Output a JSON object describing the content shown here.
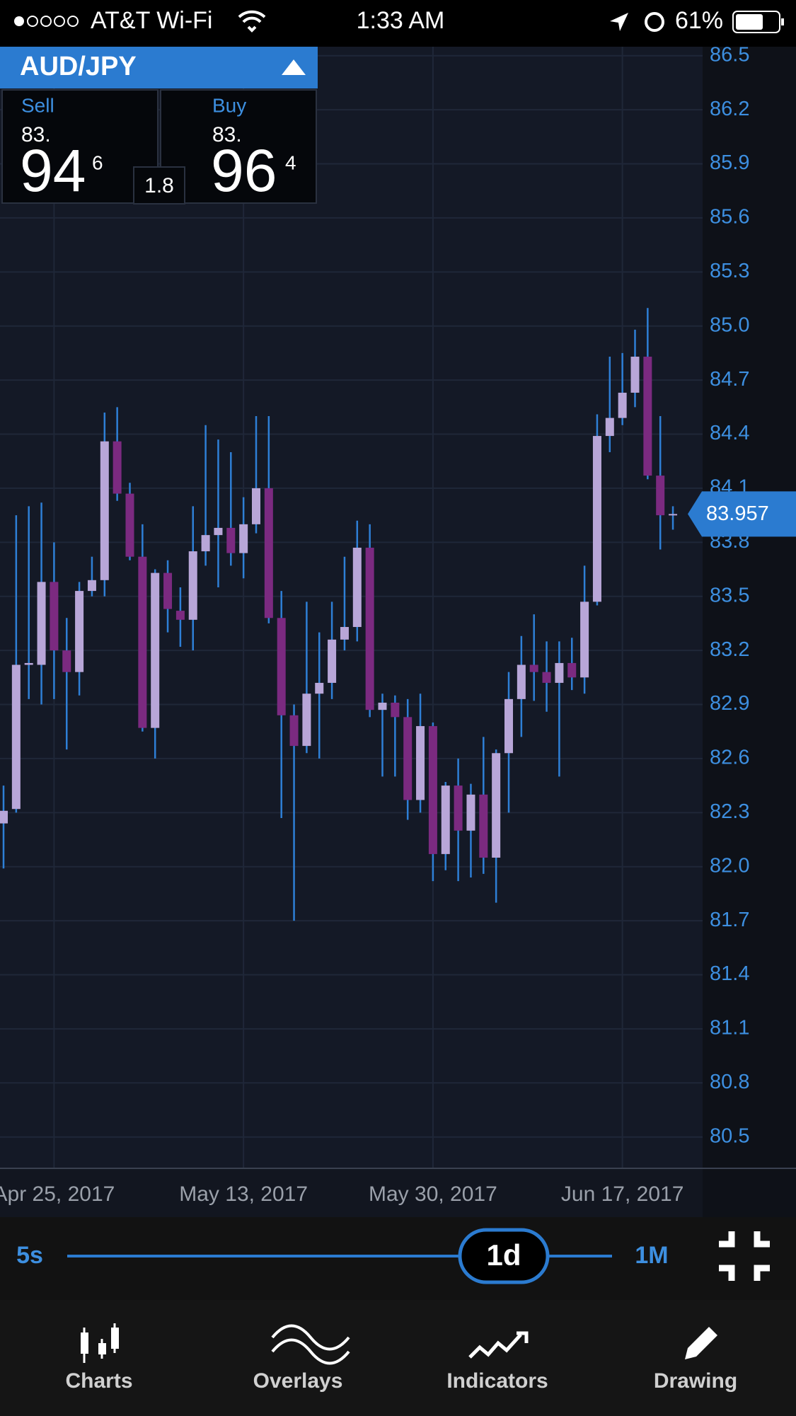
{
  "status_bar": {
    "carrier": "AT&T Wi-Fi",
    "time": "1:33 AM",
    "battery": "61%"
  },
  "ticket": {
    "pair": "AUD/JPY",
    "sell": {
      "label": "Sell",
      "big_figure": "83.",
      "pips": "94",
      "fraction": "6"
    },
    "spread": "1.8",
    "buy": {
      "label": "Buy",
      "big_figure": "83.",
      "pips": "96",
      "fraction": "4"
    }
  },
  "chart_data": {
    "type": "candlestick",
    "categories": [
      null,
      null,
      null,
      null,
      null,
      null,
      null,
      null,
      null,
      null,
      null,
      null,
      null,
      null,
      null,
      null,
      null,
      null,
      null,
      null,
      null,
      null,
      null,
      null,
      null,
      null,
      null,
      null,
      null,
      null,
      null,
      null,
      null,
      null,
      null,
      null,
      null,
      null,
      null,
      null,
      null,
      null,
      null,
      null,
      null,
      null,
      null,
      null,
      null,
      null,
      null,
      null,
      null,
      null
    ],
    "open": [
      82.24,
      82.32,
      83.12,
      83.12,
      83.58,
      83.2,
      83.08,
      83.53,
      83.59,
      84.36,
      84.07,
      83.72,
      82.77,
      83.63,
      83.42,
      83.37,
      83.75,
      83.84,
      83.88,
      83.74,
      83.9,
      84.1,
      83.38,
      82.84,
      82.67,
      82.96,
      83.02,
      83.26,
      83.33,
      83.77,
      82.87,
      82.91,
      82.83,
      82.37,
      82.78,
      82.07,
      82.45,
      82.2,
      82.4,
      82.05,
      82.63,
      82.93,
      83.12,
      83.08,
      83.02,
      83.13,
      83.05,
      83.47,
      84.39,
      84.49,
      84.63,
      84.83,
      84.17,
      83.95
    ],
    "high": [
      82.45,
      83.95,
      84.0,
      84.02,
      83.8,
      83.38,
      83.58,
      83.72,
      84.52,
      84.55,
      84.13,
      83.9,
      83.65,
      83.7,
      83.55,
      84.0,
      84.45,
      84.37,
      84.3,
      84.05,
      84.5,
      84.5,
      83.53,
      82.9,
      83.47,
      83.3,
      83.47,
      83.72,
      83.92,
      83.9,
      82.96,
      82.95,
      82.93,
      82.96,
      82.8,
      82.47,
      82.6,
      82.46,
      82.72,
      82.65,
      83.08,
      83.28,
      83.4,
      83.25,
      83.25,
      83.27,
      83.67,
      84.51,
      84.83,
      84.85,
      84.98,
      85.1,
      84.5,
      84.0
    ],
    "low": [
      81.99,
      82.3,
      82.93,
      82.9,
      82.93,
      82.65,
      82.95,
      83.5,
      83.5,
      84.03,
      83.7,
      82.75,
      82.6,
      83.3,
      83.22,
      83.2,
      83.67,
      83.55,
      83.67,
      83.6,
      83.85,
      83.35,
      82.27,
      81.7,
      82.63,
      82.6,
      82.93,
      83.2,
      83.25,
      82.83,
      82.5,
      82.5,
      82.26,
      82.3,
      81.92,
      81.98,
      81.92,
      81.94,
      81.96,
      81.8,
      82.3,
      82.72,
      82.92,
      82.86,
      82.5,
      82.98,
      82.96,
      83.45,
      84.3,
      84.45,
      84.55,
      84.15,
      83.76,
      83.87
    ],
    "close": [
      82.31,
      83.12,
      83.13,
      83.58,
      83.2,
      83.08,
      83.53,
      83.59,
      84.36,
      84.07,
      83.72,
      82.77,
      83.63,
      83.43,
      83.37,
      83.75,
      83.84,
      83.88,
      83.74,
      83.9,
      84.1,
      83.38,
      82.84,
      82.67,
      82.96,
      83.02,
      83.26,
      83.33,
      83.77,
      82.87,
      82.91,
      82.83,
      82.37,
      82.78,
      82.07,
      82.45,
      82.2,
      82.4,
      82.05,
      82.63,
      82.93,
      83.12,
      83.08,
      83.02,
      83.13,
      83.05,
      83.47,
      84.39,
      84.49,
      84.63,
      84.83,
      84.17,
      83.95,
      83.957
    ],
    "up_color": "#b8a6d8",
    "down_color": "#7b2a80",
    "wick_color": "#2e7fd6",
    "last_price": 83.957,
    "ylim": [
      80.33,
      86.55
    ],
    "yticks": [
      80.5,
      80.8,
      81.1,
      81.4,
      81.7,
      {
        "value": 82,
        "label": "82.0"
      },
      82.3,
      82.6,
      82.9,
      83.2,
      83.5,
      83.8,
      84.1,
      84.4,
      84.7,
      {
        "value": 85,
        "label": "85.0"
      },
      85.3,
      85.6,
      85.9,
      86.2,
      86.5
    ],
    "xticks": [
      {
        "value": 4,
        "label": "Apr 25, 2017"
      },
      {
        "value": 19,
        "label": "May 13, 2017"
      },
      {
        "value": 34,
        "label": "May 30, 2017"
      },
      {
        "value": 49,
        "label": "Jun 17, 2017"
      }
    ],
    "grid": true
  },
  "timeframe": {
    "min": "5s",
    "selected": "1d",
    "max": "1M"
  },
  "tabs": [
    "Charts",
    "Overlays",
    "Indicators",
    "Drawing"
  ]
}
